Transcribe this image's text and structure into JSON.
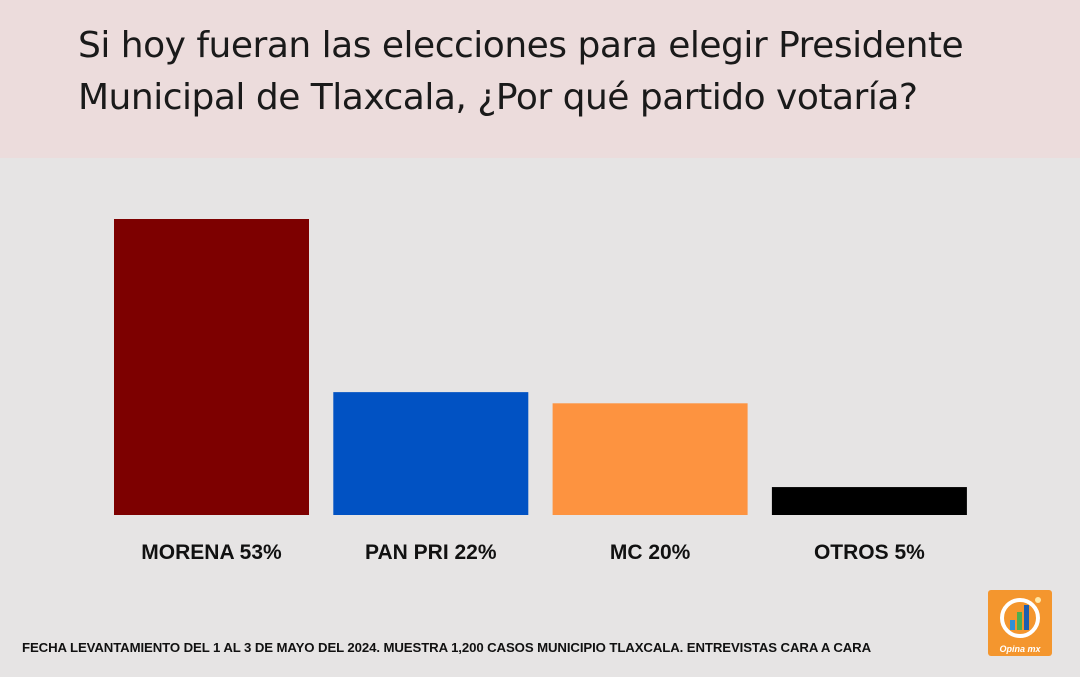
{
  "header": {
    "title": "Si hoy fueran las elecciones para elegir Presidente Municipal de Tlaxcala, ¿Por qué partido votaría?"
  },
  "chart_data": {
    "type": "bar",
    "title": "Si hoy fueran las elecciones para elegir Presidente Municipal de Tlaxcala, ¿Por qué partido votaría?",
    "categories": [
      "MORENA 53%",
      "PAN PRI 22%",
      "MC 20%",
      "OTROS 5%"
    ],
    "values": [
      53,
      22,
      20,
      5
    ],
    "colors": [
      "#7d0000",
      "#0152c3",
      "#fd9340",
      "#000000"
    ],
    "ylim": [
      0,
      53
    ],
    "xlabel": "",
    "ylabel": "",
    "grid": false,
    "legend": "none"
  },
  "footer": {
    "note": "FECHA LEVANTAMIENTO DEL 1 AL 3 DE MAYO DEL 2024. MUESTRA 1,200 CASOS MUNICIPIO TLAXCALA.  ENTREVISTAS CARA A CARA"
  },
  "logo": {
    "text": "Opina mx",
    "icon": "bar-chart-circle-icon",
    "color": "#f4962e"
  }
}
